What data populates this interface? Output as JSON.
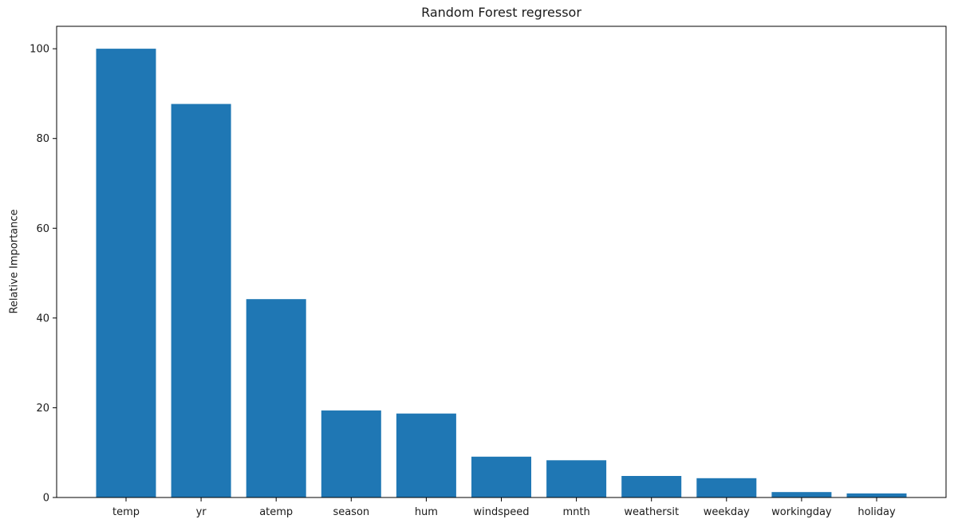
{
  "chart_data": {
    "type": "bar",
    "title": "Random Forest regressor",
    "xlabel": "",
    "ylabel": "Relative Importance",
    "categories": [
      "temp",
      "yr",
      "atemp",
      "season",
      "hum",
      "windspeed",
      "mnth",
      "weathersit",
      "weekday",
      "workingday",
      "holiday"
    ],
    "values": [
      100.0,
      87.7,
      44.2,
      19.4,
      18.7,
      9.1,
      8.3,
      4.8,
      4.3,
      1.2,
      0.9
    ],
    "yticks": [
      0,
      20,
      40,
      60,
      80,
      100
    ],
    "ylim": [
      0,
      105
    ],
    "bar_color": "#1f77b4",
    "axis_color": "#000000",
    "grid": false,
    "legend_position": "none"
  }
}
